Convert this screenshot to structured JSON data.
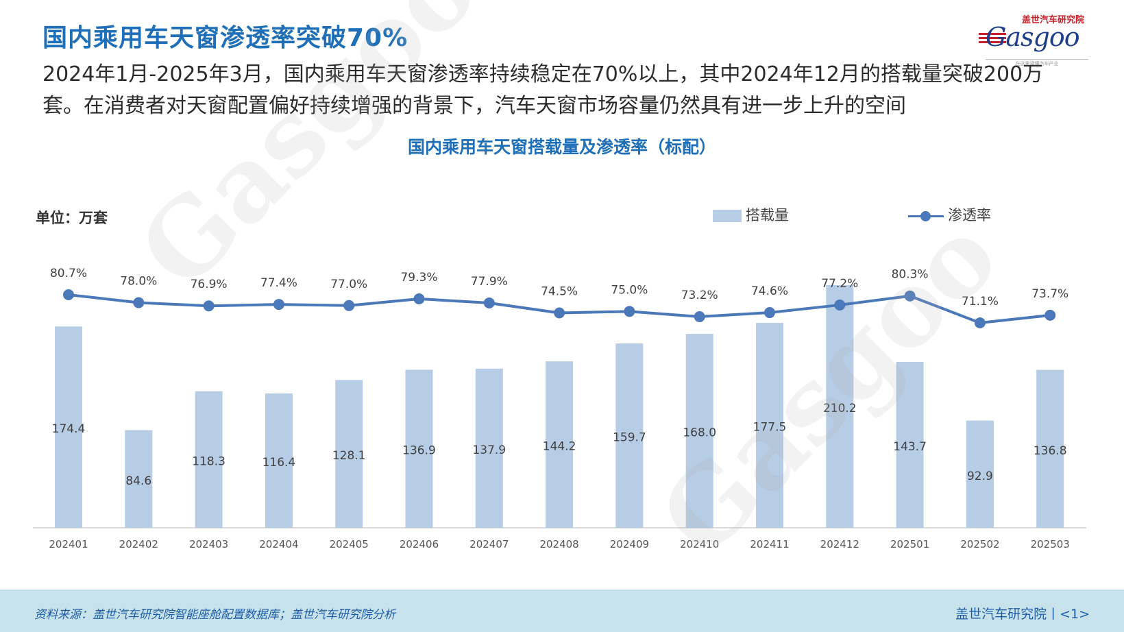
{
  "headline": "国内乘用车天窗渗透率突破70%",
  "logo": {
    "cn": "盖世汽车研究院",
    "en": "Gasgoo",
    "tagline": "在这里读懂汽车产业"
  },
  "summary": "2024年1月-2025年3月，国内乘用车天窗渗透率持续稳定在70%以上，其中2024年12月的搭载量突破200万套。在消费者对天窗配置偏好持续增强的背景下，汽车天窗市场容量仍然具有进一步上升的空间",
  "colors": {
    "accent": "#1e6fb8",
    "bar": "#b7cce5",
    "line": "#4a78b8",
    "footer_bg": "#c8e2ec"
  },
  "chart_data": {
    "type": "bar+line",
    "title": "国内乘用车天窗搭载量及渗透率（标配）",
    "unit_label": "单位：万套",
    "legend_position": "top-right",
    "categories": [
      "202401",
      "202402",
      "202403",
      "202404",
      "202405",
      "202406",
      "202407",
      "202408",
      "202409",
      "202410",
      "202411",
      "202412",
      "202501",
      "202502",
      "202503"
    ],
    "series": [
      {
        "name": "搭载量",
        "kind": "bar",
        "values": [
          174.4,
          84.6,
          118.3,
          116.4,
          128.1,
          136.9,
          137.9,
          144.2,
          159.7,
          168.0,
          177.5,
          210.2,
          143.7,
          92.9,
          136.8
        ],
        "labels": [
          "174.4",
          "84.6",
          "118.3",
          "116.4",
          "128.1",
          "136.9",
          "137.9",
          "144.2",
          "159.7",
          "168.0",
          "177.5",
          "210.2",
          "143.7",
          "92.9",
          "136.8"
        ],
        "ylim": [
          0,
          210.2
        ]
      },
      {
        "name": "渗透率",
        "kind": "line",
        "values": [
          80.7,
          78.0,
          76.9,
          77.4,
          77.0,
          79.3,
          77.9,
          74.5,
          75.0,
          73.2,
          74.6,
          77.2,
          80.3,
          71.1,
          73.7
        ],
        "labels": [
          "80.7%",
          "78.0%",
          "76.9%",
          "77.4%",
          "77.0%",
          "79.3%",
          "77.9%",
          "74.5%",
          "75.0%",
          "73.2%",
          "74.6%",
          "77.2%",
          "80.3%",
          "71.1%",
          "73.7%"
        ],
        "ylim": [
          0,
          100
        ]
      }
    ]
  },
  "footer": {
    "source": "资料来源：盖世汽车研究院智能座舱配置数据库；盖世汽车研究院分析",
    "brand": "盖世汽车研究院丨<1>"
  }
}
